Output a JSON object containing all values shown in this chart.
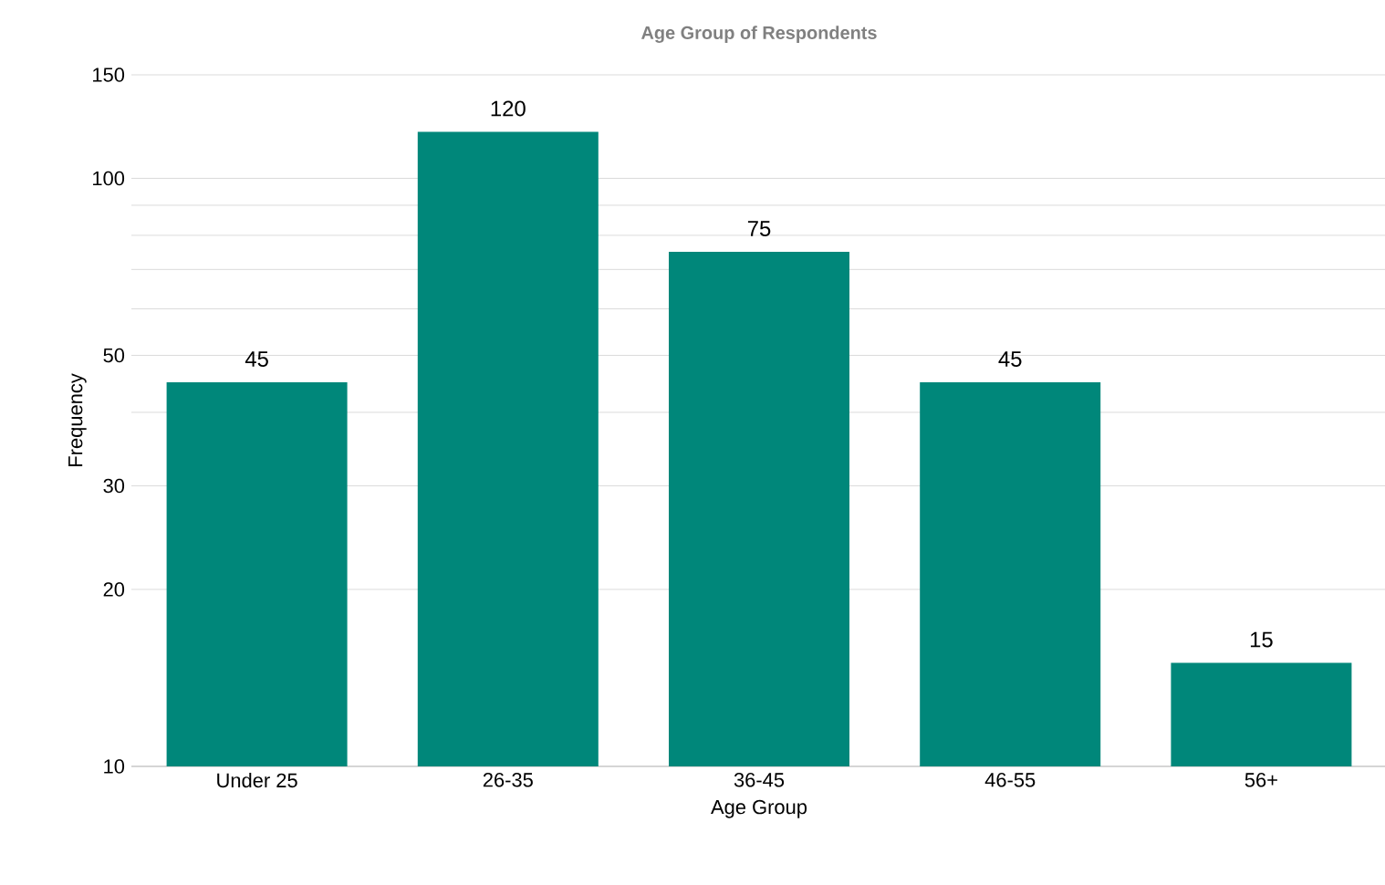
{
  "chart_data": {
    "type": "bar",
    "title": "Age Group of Respondents",
    "xlabel": "Age Group",
    "ylabel": "Frequency",
    "categories": [
      "Under 25",
      "26-35",
      "36-45",
      "46-55",
      "56+"
    ],
    "values": [
      45,
      120,
      75,
      45,
      15
    ],
    "color": "#00877a",
    "data_labels": true,
    "log": "y",
    "grid": "y",
    "ylim": [
      10,
      150
    ],
    "yticks": [
      10,
      20,
      30,
      {
        "value": 40,
        "label": null
      },
      50,
      {
        "value": 60,
        "label": null
      },
      {
        "value": 70,
        "label": null
      },
      {
        "value": 80,
        "label": null
      },
      {
        "value": 90,
        "label": null
      },
      100,
      150
    ]
  }
}
